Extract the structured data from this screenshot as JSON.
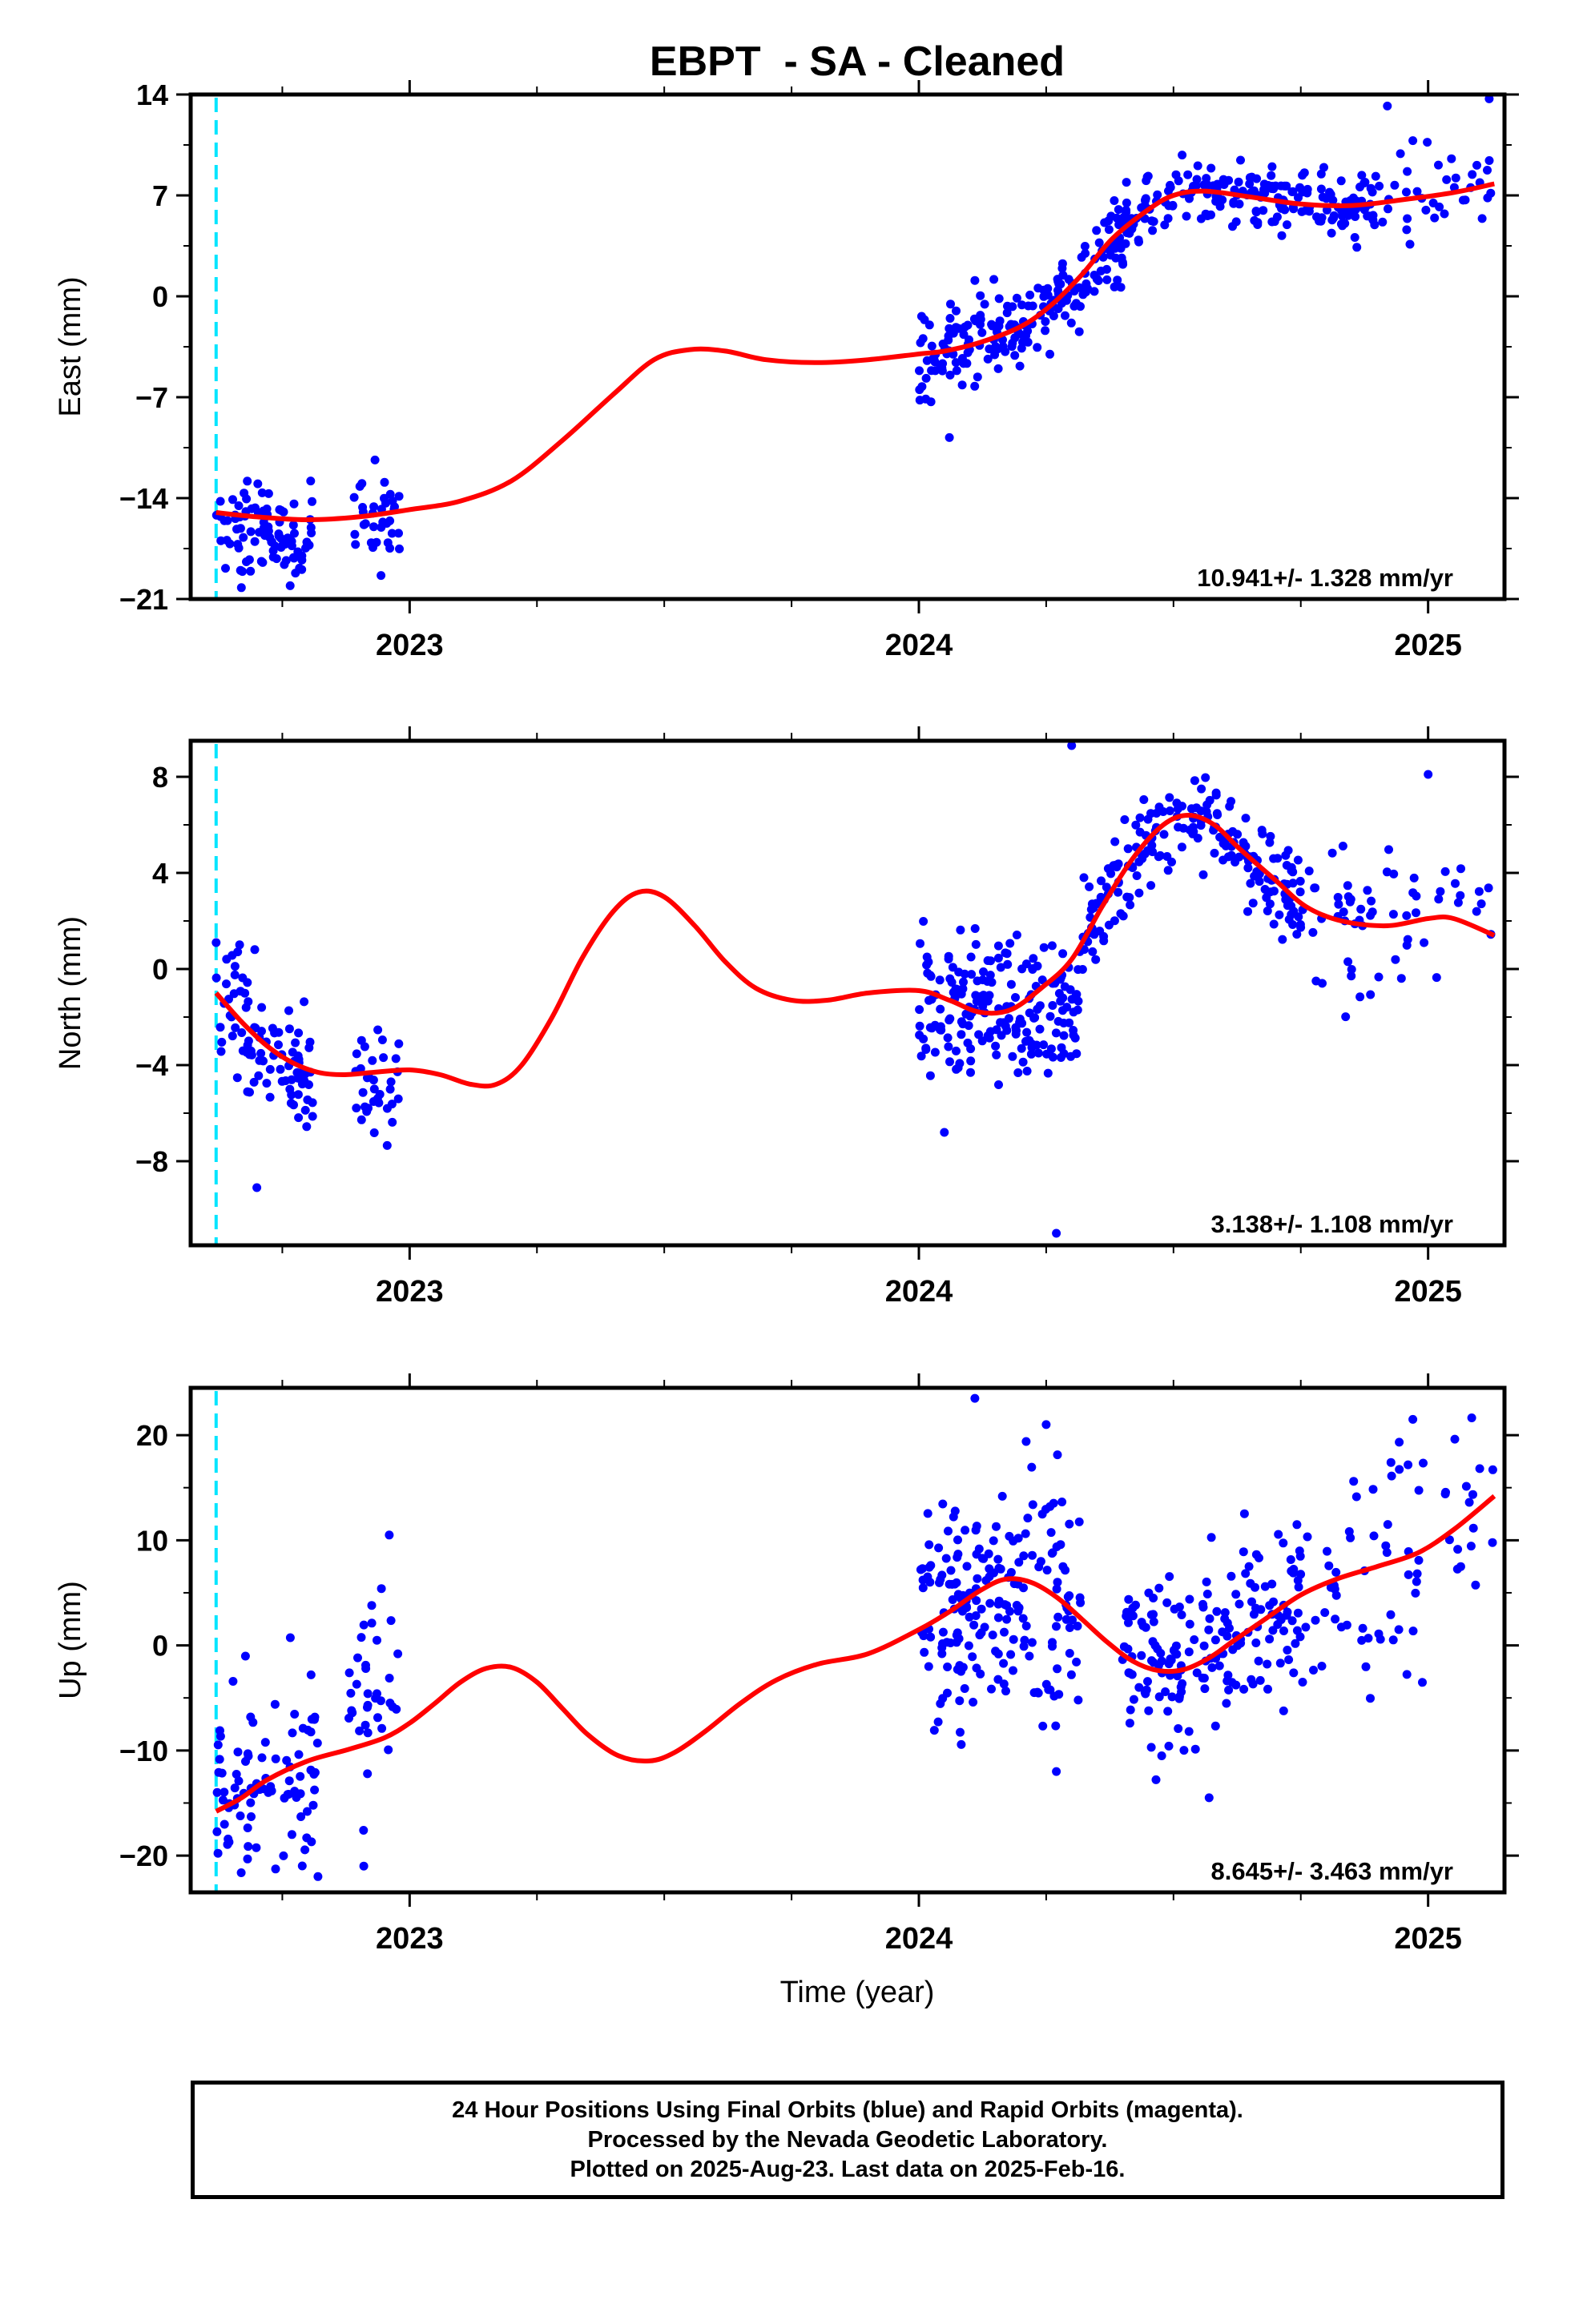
{
  "figure": {
    "title": "EBPT  - SA - Cleaned",
    "xlabel": "Time (year)",
    "x_ticks": [
      "2023",
      "2024",
      "2025"
    ]
  },
  "caption": {
    "line1": "24 Hour Positions Using Final Orbits (blue) and Rapid Orbits (magenta).",
    "line2": "Processed by the Nevada Geodetic Laboratory.",
    "line3": "Plotted on 2025-Aug-23. Last data on 2025-Feb-16."
  },
  "colors": {
    "final_orbits": "#0000ff",
    "model_fit": "#ff0000",
    "first_epoch_line": "#00e5ff",
    "frame": "#000000"
  },
  "chart_data": [
    {
      "type": "scatter",
      "name": "east",
      "ylabel": "East (mm)",
      "xlim": [
        2022.57,
        2025.15
      ],
      "ylim": [
        -21,
        14
      ],
      "yticks": [
        -21,
        -14,
        -7,
        0,
        7,
        14
      ],
      "velocity_label": "10.941+/- 1.328 mm/yr",
      "first_epoch_line": 2022.62,
      "clusters": [
        {
          "from": 2022.62,
          "to": 2022.81,
          "center": -16.5,
          "spread": 1.6,
          "n": 95
        },
        {
          "from": 2022.89,
          "to": 2022.98,
          "center": -15.6,
          "spread": 1.8,
          "n": 35
        },
        {
          "from": 2024.0,
          "to": 2024.42,
          "center": "fit",
          "spread": 1.5,
          "n": 210
        },
        {
          "from": 2024.4,
          "to": 2024.9,
          "center": "fit",
          "spread": 1.1,
          "n": 200
        },
        {
          "from": 2024.9,
          "to": 2025.13,
          "center": "fit",
          "spread": 1.5,
          "n": 35
        }
      ],
      "outliers": [
        [
          2024.06,
          -9.8
        ],
        [
          2024.11,
          1.1
        ],
        [
          2024.86,
          3.4
        ],
        [
          2024.92,
          13.2
        ],
        [
          2025.12,
          13.7
        ],
        [
          2024.97,
          10.8
        ]
      ],
      "fit": [
        [
          2022.62,
          -15.0
        ],
        [
          2022.7,
          -15.3
        ],
        [
          2022.8,
          -15.5
        ],
        [
          2022.9,
          -15.3
        ],
        [
          2023.0,
          -14.8
        ],
        [
          2023.1,
          -14.2
        ],
        [
          2023.2,
          -12.8
        ],
        [
          2023.3,
          -10.0
        ],
        [
          2023.4,
          -6.8
        ],
        [
          2023.48,
          -4.4
        ],
        [
          2023.55,
          -3.7
        ],
        [
          2023.62,
          -3.8
        ],
        [
          2023.7,
          -4.4
        ],
        [
          2023.8,
          -4.6
        ],
        [
          2023.9,
          -4.4
        ],
        [
          2024.0,
          -4.0
        ],
        [
          2024.05,
          -3.8
        ],
        [
          2024.12,
          -3.2
        ],
        [
          2024.2,
          -2.1
        ],
        [
          2024.26,
          -0.6
        ],
        [
          2024.32,
          1.5
        ],
        [
          2024.38,
          4.0
        ],
        [
          2024.45,
          6.0
        ],
        [
          2024.5,
          7.0
        ],
        [
          2024.56,
          7.3
        ],
        [
          2024.65,
          6.9
        ],
        [
          2024.75,
          6.4
        ],
        [
          2024.85,
          6.3
        ],
        [
          2024.95,
          6.7
        ],
        [
          2025.05,
          7.2
        ],
        [
          2025.13,
          7.8
        ]
      ]
    },
    {
      "type": "scatter",
      "name": "north",
      "ylabel": "North (mm)",
      "xlim": [
        2022.57,
        2025.15
      ],
      "ylim": [
        -11.5,
        9.5
      ],
      "yticks": [
        -8,
        -4,
        0,
        4,
        8
      ],
      "velocity_label": "3.138+/- 1.108 mm/yr",
      "first_epoch_line": 2022.62,
      "clusters": [
        {
          "from": 2022.62,
          "to": 2022.81,
          "center": "fit",
          "spread": 1.4,
          "n": 95
        },
        {
          "from": 2022.89,
          "to": 2022.98,
          "center": -5.0,
          "spread": 1.0,
          "n": 35
        },
        {
          "from": 2024.0,
          "to": 2024.32,
          "center": -1.5,
          "spread": 1.4,
          "n": 200
        },
        {
          "from": 2024.32,
          "to": 2024.75,
          "center": "fit",
          "spread": 1.1,
          "n": 200
        },
        {
          "from": 2024.75,
          "to": 2025.13,
          "center": "fit",
          "spread": 1.5,
          "n": 60
        }
      ],
      "outliers": [
        [
          2022.62,
          1.1
        ],
        [
          2024.3,
          9.3
        ],
        [
          2024.27,
          -11.0
        ],
        [
          2024.05,
          -6.8
        ],
        [
          2022.7,
          -9.1
        ],
        [
          2025.0,
          8.1
        ],
        [
          2024.78,
          -0.5
        ]
      ],
      "fit": [
        [
          2022.62,
          -1.0
        ],
        [
          2022.67,
          -2.2
        ],
        [
          2022.72,
          -3.2
        ],
        [
          2022.77,
          -3.9
        ],
        [
          2022.82,
          -4.3
        ],
        [
          2022.87,
          -4.4
        ],
        [
          2022.93,
          -4.3
        ],
        [
          2023.0,
          -4.2
        ],
        [
          2023.06,
          -4.4
        ],
        [
          2023.12,
          -4.8
        ],
        [
          2023.17,
          -4.8
        ],
        [
          2023.22,
          -4.0
        ],
        [
          2023.28,
          -2.0
        ],
        [
          2023.34,
          0.5
        ],
        [
          2023.4,
          2.4
        ],
        [
          2023.45,
          3.2
        ],
        [
          2023.5,
          3.0
        ],
        [
          2023.56,
          1.8
        ],
        [
          2023.62,
          0.3
        ],
        [
          2023.68,
          -0.8
        ],
        [
          2023.75,
          -1.3
        ],
        [
          2023.82,
          -1.3
        ],
        [
          2023.9,
          -1.0
        ],
        [
          2024.0,
          -0.9
        ],
        [
          2024.06,
          -1.3
        ],
        [
          2024.12,
          -1.8
        ],
        [
          2024.18,
          -1.7
        ],
        [
          2024.24,
          -0.8
        ],
        [
          2024.3,
          0.4
        ],
        [
          2024.36,
          2.6
        ],
        [
          2024.42,
          4.6
        ],
        [
          2024.48,
          6.0
        ],
        [
          2024.53,
          6.4
        ],
        [
          2024.58,
          6.0
        ],
        [
          2024.63,
          5.0
        ],
        [
          2024.7,
          3.7
        ],
        [
          2024.76,
          2.6
        ],
        [
          2024.83,
          2.0
        ],
        [
          2024.92,
          1.8
        ],
        [
          2025.0,
          2.1
        ],
        [
          2025.05,
          2.1
        ],
        [
          2025.13,
          1.4
        ]
      ]
    },
    {
      "type": "scatter",
      "name": "up",
      "ylabel": "Up (mm)",
      "xlim": [
        2022.57,
        2025.15
      ],
      "ylim": [
        -23.5,
        24.5
      ],
      "yticks": [
        -20,
        -10,
        0,
        10,
        20
      ],
      "velocity_label": "8.645+/- 3.463 mm/yr",
      "first_epoch_line": 2022.62,
      "clusters": [
        {
          "from": 2022.62,
          "to": 2022.82,
          "center": "fit",
          "spread": 4.5,
          "n": 90
        },
        {
          "from": 2022.88,
          "to": 2022.98,
          "center": -5.0,
          "spread": 5.0,
          "n": 35
        },
        {
          "from": 2024.0,
          "to": 2024.32,
          "center": "fit",
          "spread": 5.5,
          "n": 200
        },
        {
          "from": 2024.4,
          "to": 2024.75,
          "center": "fit",
          "spread": 4.0,
          "n": 180
        },
        {
          "from": 2024.75,
          "to": 2025.13,
          "center": "fit",
          "spread": 5.5,
          "n": 70
        }
      ],
      "outliers": [
        [
          2024.11,
          23.5
        ],
        [
          2024.25,
          21.0
        ],
        [
          2022.96,
          10.5
        ],
        [
          2024.97,
          21.5
        ],
        [
          2022.82,
          -22.0
        ],
        [
          2022.91,
          -21.0
        ],
        [
          2024.57,
          -14.5
        ],
        [
          2024.27,
          -12.0
        ]
      ],
      "fit": [
        [
          2022.62,
          -15.8
        ],
        [
          2022.67,
          -14.5
        ],
        [
          2022.72,
          -12.8
        ],
        [
          2022.8,
          -11.0
        ],
        [
          2022.88,
          -9.9
        ],
        [
          2022.95,
          -8.8
        ],
        [
          2023.0,
          -7.4
        ],
        [
          2023.05,
          -5.5
        ],
        [
          2023.1,
          -3.5
        ],
        [
          2023.15,
          -2.2
        ],
        [
          2023.2,
          -2.1
        ],
        [
          2023.25,
          -3.5
        ],
        [
          2023.3,
          -6.0
        ],
        [
          2023.35,
          -8.5
        ],
        [
          2023.41,
          -10.5
        ],
        [
          2023.47,
          -11.0
        ],
        [
          2023.52,
          -10.2
        ],
        [
          2023.58,
          -8.2
        ],
        [
          2023.65,
          -5.5
        ],
        [
          2023.72,
          -3.3
        ],
        [
          2023.8,
          -1.8
        ],
        [
          2023.9,
          -0.8
        ],
        [
          2024.0,
          1.5
        ],
        [
          2024.06,
          3.2
        ],
        [
          2024.12,
          5.2
        ],
        [
          2024.17,
          6.3
        ],
        [
          2024.22,
          6.0
        ],
        [
          2024.27,
          4.6
        ],
        [
          2024.32,
          2.5
        ],
        [
          2024.37,
          0.3
        ],
        [
          2024.42,
          -1.5
        ],
        [
          2024.47,
          -2.4
        ],
        [
          2024.52,
          -2.3
        ],
        [
          2024.57,
          -1.2
        ],
        [
          2024.62,
          0.5
        ],
        [
          2024.68,
          2.5
        ],
        [
          2024.75,
          4.8
        ],
        [
          2024.82,
          6.3
        ],
        [
          2024.9,
          7.5
        ],
        [
          2024.98,
          8.8
        ],
        [
          2025.05,
          11.0
        ],
        [
          2025.13,
          14.2
        ]
      ]
    }
  ]
}
